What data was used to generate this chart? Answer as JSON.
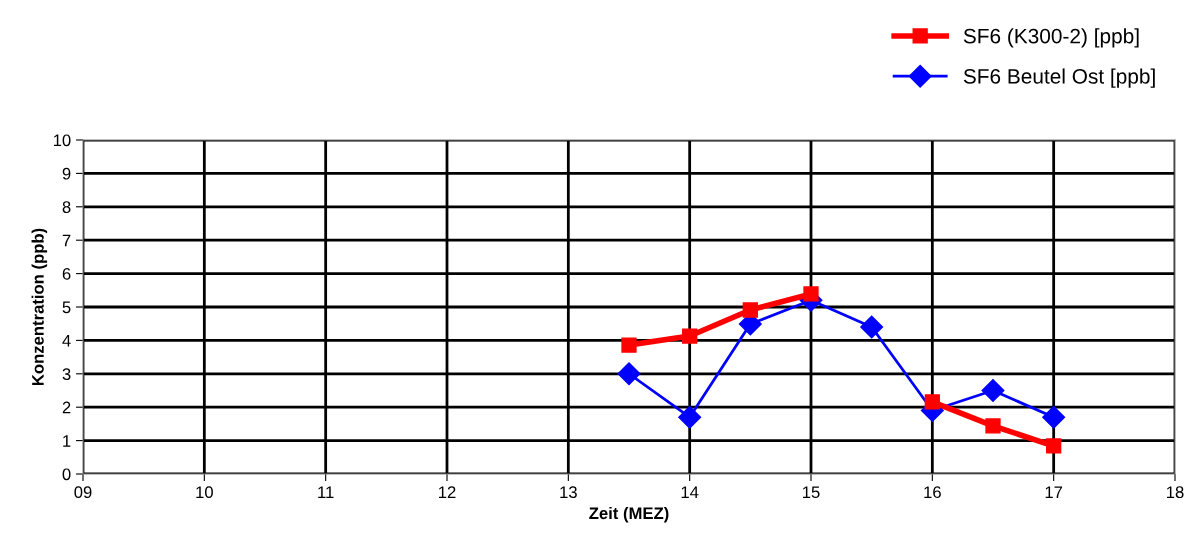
{
  "chart_data": {
    "type": "line",
    "xlabel": "Zeit (MEZ)",
    "ylabel": "Konzentration (ppb)",
    "x": [
      13.5,
      14,
      14.5,
      15,
      15.5,
      16,
      16.5,
      17
    ],
    "series": [
      {
        "name": "SF6 (K300-2) [ppb]",
        "color": "#ff0000",
        "marker": "square",
        "values": [
          3.86,
          4.13,
          4.91,
          5.39,
          null,
          2.16,
          1.44,
          0.84
        ]
      },
      {
        "name": "SF6 Beutel Ost [ppb]",
        "color": "#0000ff",
        "marker": "diamond",
        "values": [
          3.0,
          1.7,
          4.49,
          5.2,
          4.4,
          1.9,
          2.5,
          1.7
        ]
      }
    ],
    "xlim": [
      9,
      18
    ],
    "xticks": [
      {
        "value": 9,
        "label": "09"
      },
      10,
      11,
      12,
      13,
      14,
      15,
      16,
      17,
      18
    ],
    "ylim": [
      0,
      10
    ],
    "yticks": [
      0,
      1,
      2,
      3,
      4,
      5,
      6,
      7,
      8,
      9,
      10
    ],
    "grid": true,
    "legend": "top right"
  }
}
